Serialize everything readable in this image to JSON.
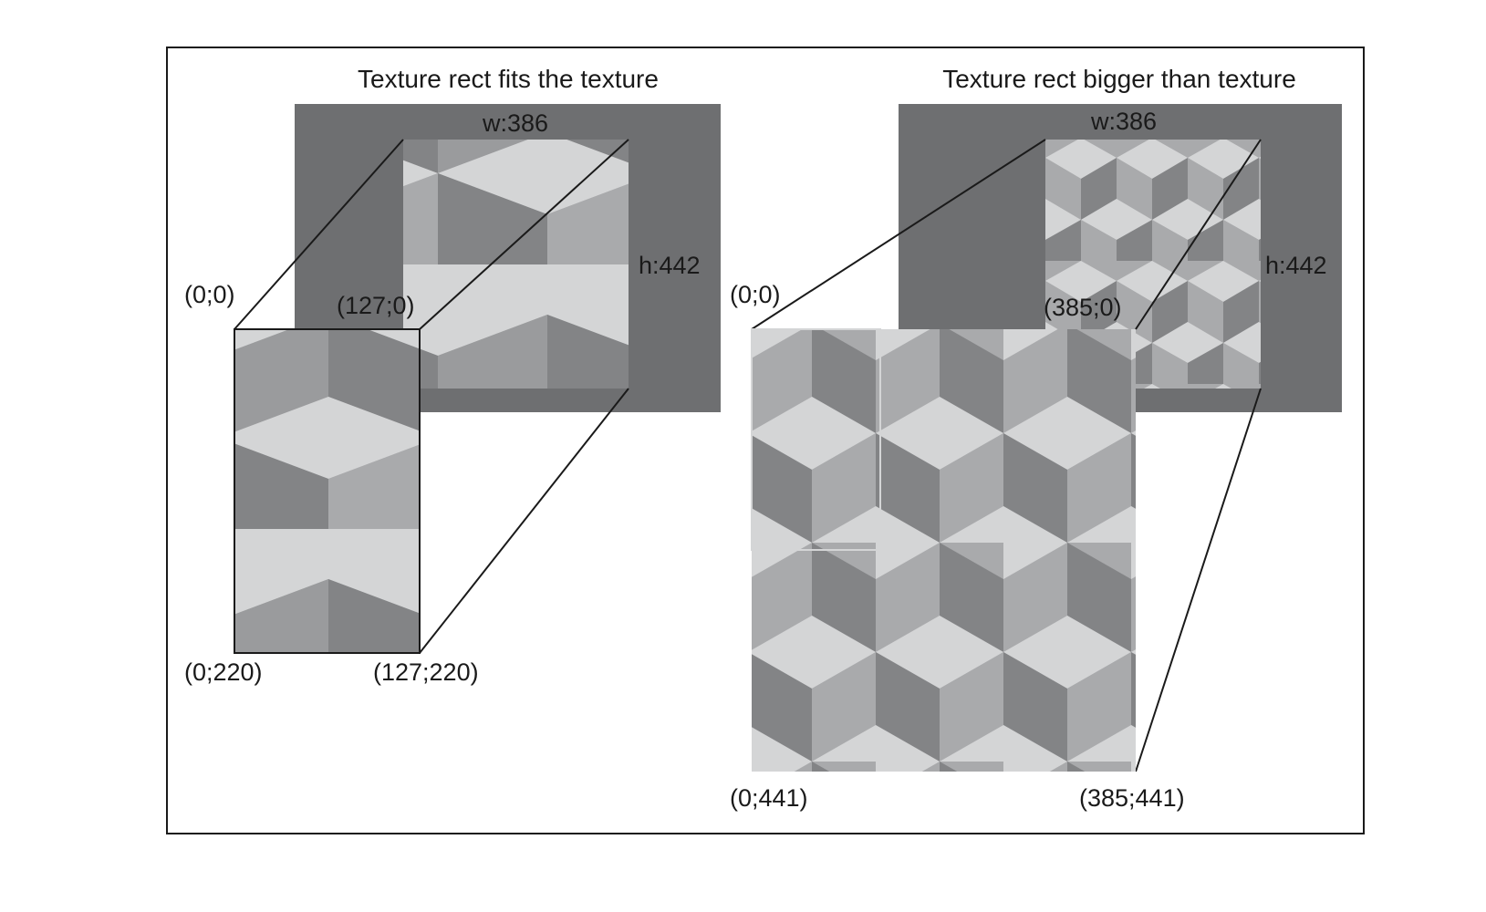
{
  "colors": {
    "frame": "#1a1a1a",
    "background_panel": "#6e6f71",
    "face_light": "#d4d5d6",
    "face_mid": "#a9aaac",
    "face_dark": "#838486"
  },
  "left_panel": {
    "title": "Texture rect fits the texture",
    "width_label": "w:386",
    "height_label": "h:442",
    "corner_top_left": "(0;0)",
    "corner_top_right": "(127;0)",
    "corner_bottom_left": "(0;220)",
    "corner_bottom_right": "(127;220)"
  },
  "right_panel": {
    "title": "Texture rect bigger than texture",
    "width_label": "w:386",
    "height_label": "h:442",
    "corner_top_left": "(0;0)",
    "corner_top_right": "(385;0)",
    "corner_bottom_left": "(0;441)",
    "corner_bottom_right": "(385;441)"
  }
}
